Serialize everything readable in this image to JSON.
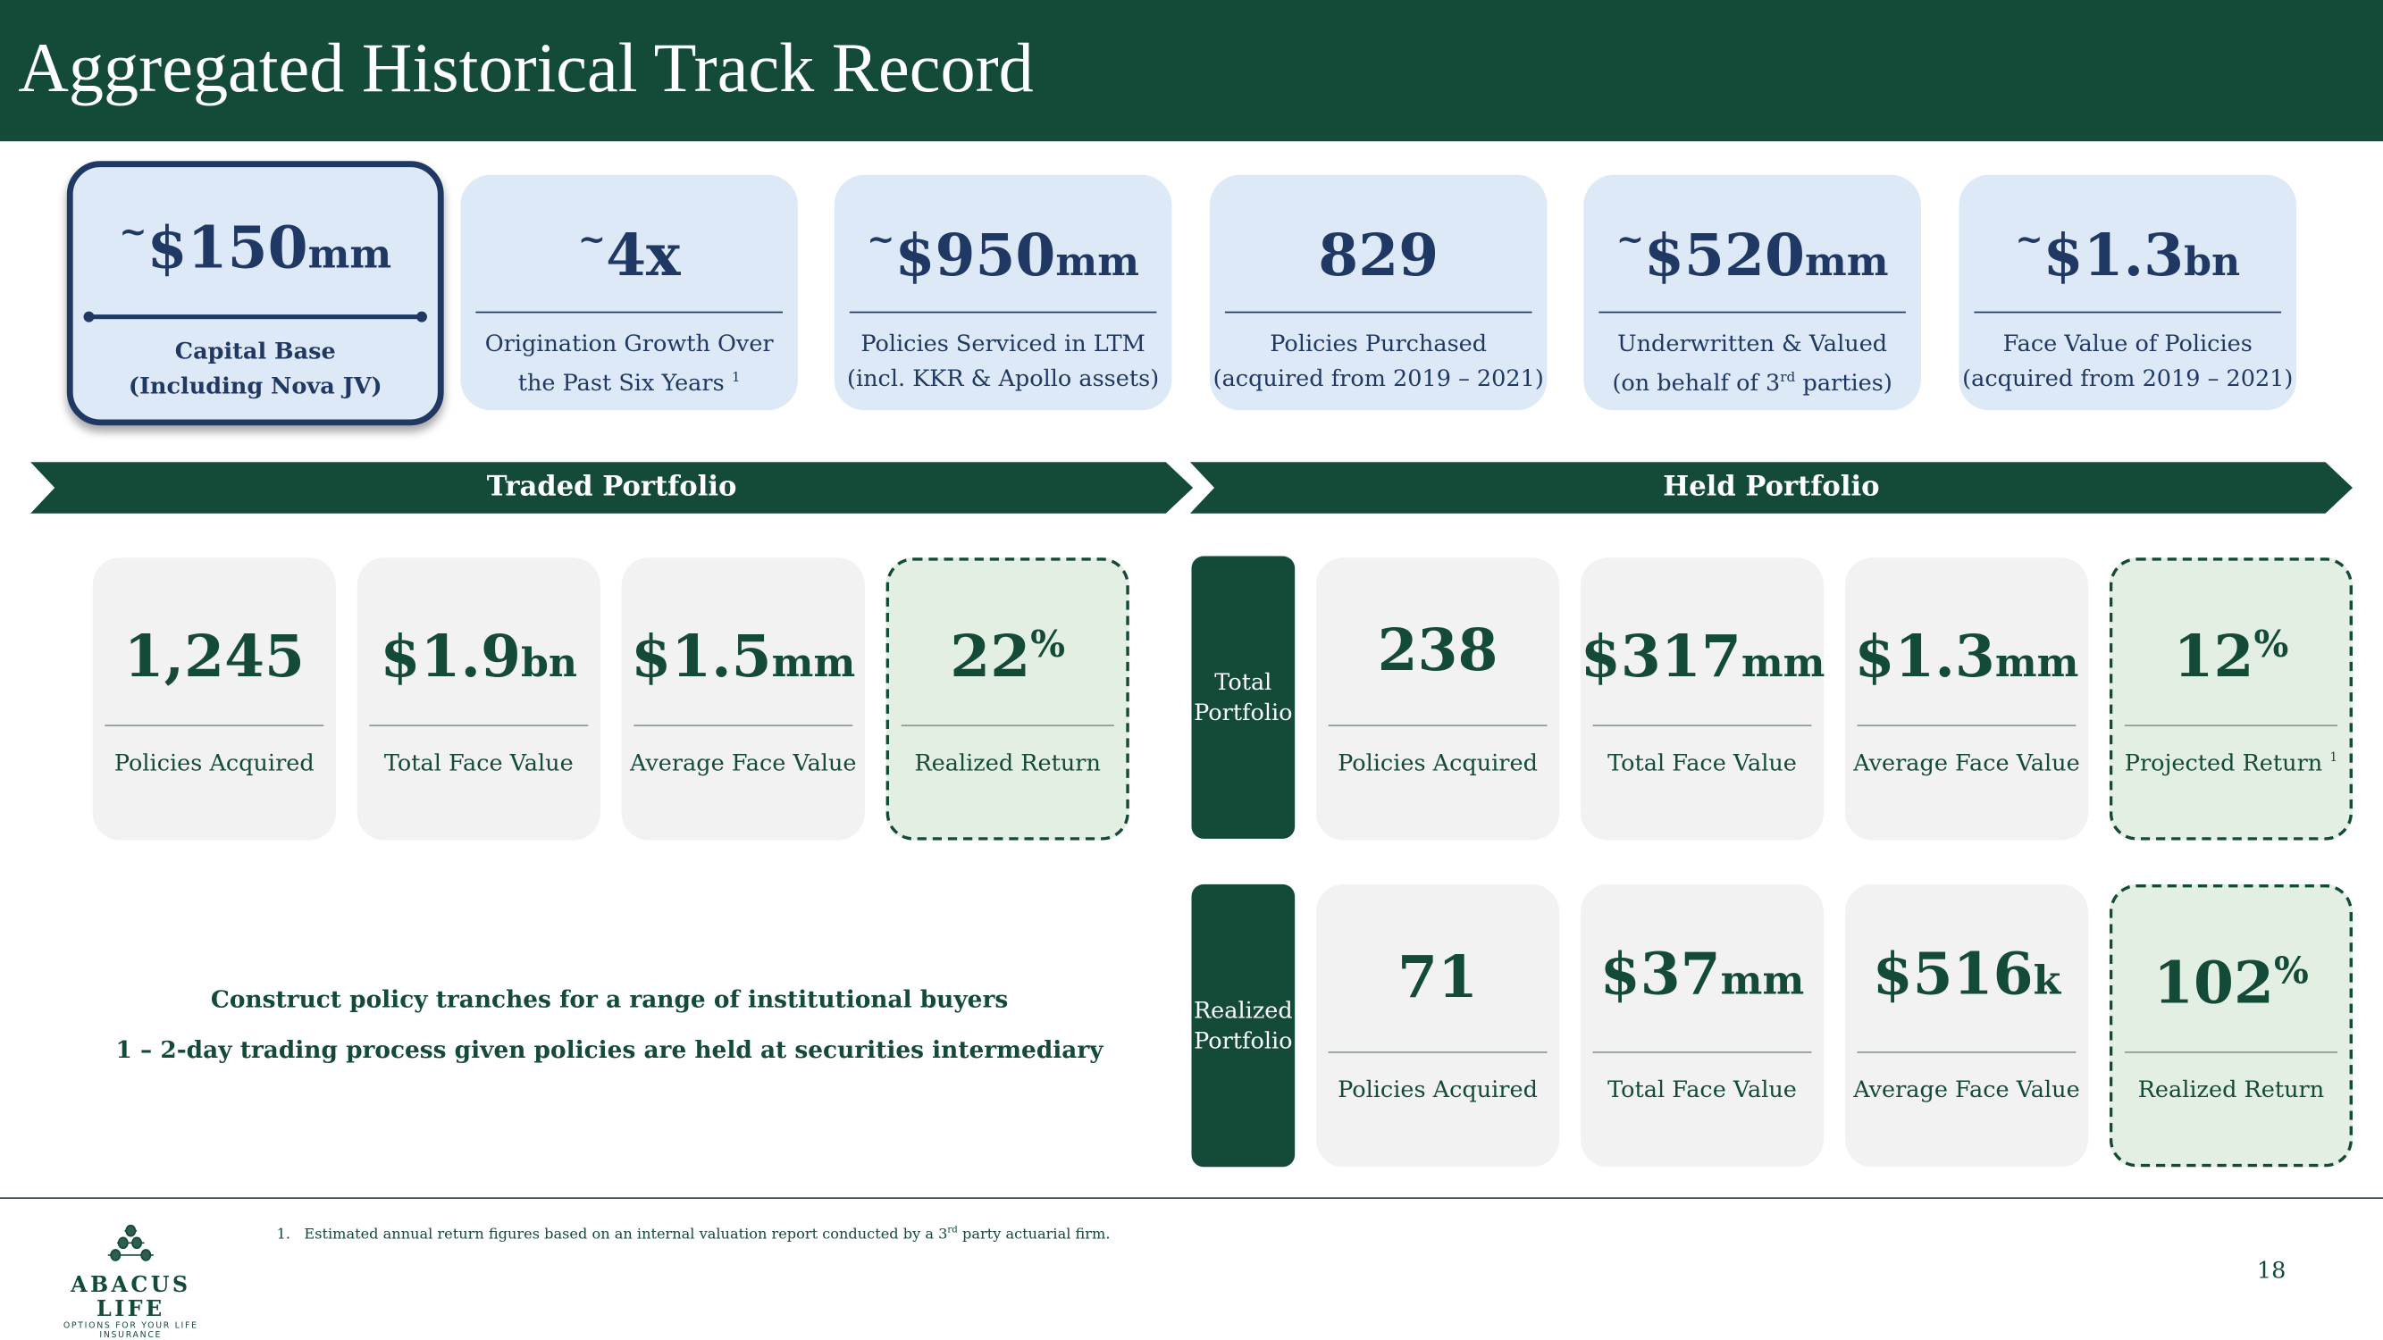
{
  "header": {
    "title": "Aggregated Historical Track Record"
  },
  "top_stats": [
    {
      "prefix": "~",
      "value": "$150",
      "suffix": "mm",
      "label_line1": "Capital Base",
      "label_line2": "(Including Nova JV)"
    },
    {
      "prefix": "~",
      "value": "4x",
      "suffix": "",
      "label_line1": "Origination Growth Over",
      "label_line2": "the Past Six Years",
      "footnote": "1"
    },
    {
      "prefix": "~",
      "value": "$950",
      "suffix": "mm",
      "label_line1": "Policies Serviced in LTM",
      "label_line2": "(incl. KKR & Apollo assets)"
    },
    {
      "prefix": "",
      "value": "829",
      "suffix": "",
      "label_line1": "Policies Purchased",
      "label_line2": "(acquired from 2019 – 2021)"
    },
    {
      "prefix": "~",
      "value": "$520",
      "suffix": "mm",
      "label_line1": "Underwritten & Valued",
      "label_line2a": "(on behalf of 3",
      "label_line2sup": "rd",
      "label_line2b": " parties)"
    },
    {
      "prefix": "~",
      "value": "$1.3",
      "suffix": "bn",
      "label_line1": "Face Value of Policies",
      "label_line2": "(acquired from 2019 – 2021)"
    }
  ],
  "traded": {
    "banner": "Traded Portfolio",
    "cards": [
      {
        "value": "1,245",
        "suffix": "",
        "label": "Policies Acquired"
      },
      {
        "value": "$1.9",
        "suffix": "bn",
        "label": "Total Face Value"
      },
      {
        "value": "$1.5",
        "suffix": "mm",
        "label": "Average Face Value"
      },
      {
        "value": "22",
        "sup": "%",
        "label": "Realized Return"
      }
    ],
    "bullets": [
      "Construct policy tranches for a range of institutional buyers",
      "1 – 2-day trading process given policies are held at securities intermediary"
    ]
  },
  "held": {
    "banner": "Held Portfolio",
    "total": {
      "label_line1": "Total",
      "label_line2": "Portfolio",
      "cards": [
        {
          "value": "238",
          "suffix": "",
          "label": "Policies Acquired"
        },
        {
          "value": "$317",
          "suffix": "mm",
          "label": "Total Face Value"
        },
        {
          "value": "$1.3",
          "suffix": "mm",
          "label": "Average Face Value"
        },
        {
          "value": "12",
          "sup": "%",
          "label": "Projected Return",
          "footnote": "1"
        }
      ]
    },
    "realized": {
      "label_line1": "Realized",
      "label_line2": "Portfolio",
      "cards": [
        {
          "value": "71",
          "suffix": "",
          "label": "Policies Acquired"
        },
        {
          "value": "$37",
          "suffix": "mm",
          "label": "Total Face Value"
        },
        {
          "value": "$516",
          "suffix": "k",
          "label": "Average Face Value"
        },
        {
          "value": "102",
          "sup": "%",
          "label": "Realized Return"
        }
      ]
    }
  },
  "footer": {
    "footnote_num": "1.",
    "footnote_a": "Estimated annual return figures based on an internal valuation report conducted by a 3",
    "footnote_sup": "rd",
    "footnote_b": " party actuarial firm.",
    "page_number": "18",
    "logo_name": "ABACUS LIFE",
    "logo_tagline": "OPTIONS FOR YOUR LIFE INSURANCE"
  },
  "colors": {
    "header": "#134a38",
    "navy": "#1f3864",
    "top_card": "#dde9f6",
    "card": "#f2f2f2",
    "return_card": "#e2efe2"
  }
}
